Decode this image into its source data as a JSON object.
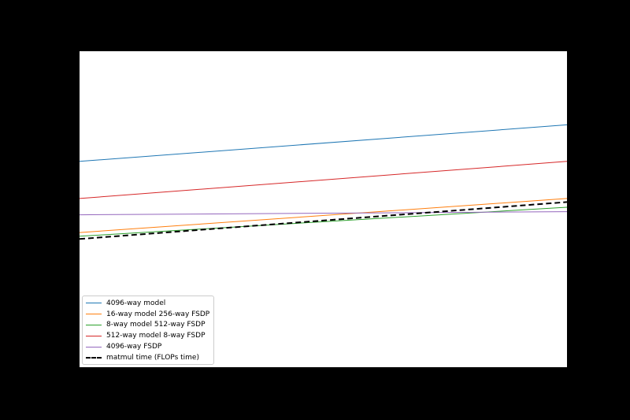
{
  "chart_data": {
    "type": "line",
    "title": "",
    "xlabel": "",
    "ylabel": "",
    "xscale": "log",
    "yscale": "log",
    "xlim": [
      1,
      100
    ],
    "ylim": [
      1,
      1000
    ],
    "x": [
      1,
      100
    ],
    "series": [
      {
        "name": "4096-way model",
        "color": "#1f77b4",
        "dash": "solid",
        "values": [
          90,
          200
        ]
      },
      {
        "name": "16-way model 256-way FSDP",
        "color": "#ff7f0e",
        "dash": "solid",
        "values": [
          19,
          40
        ]
      },
      {
        "name": "8-way model 512-way FSDP",
        "color": "#2ca02c",
        "dash": "solid",
        "values": [
          17.5,
          33
        ]
      },
      {
        "name": "512-way model 8-way FSDP",
        "color": "#d62728",
        "dash": "solid",
        "values": [
          40,
          90
        ]
      },
      {
        "name": "4096-way FSDP",
        "color": "#9467bd",
        "dash": "solid",
        "values": [
          28,
          30
        ]
      },
      {
        "name": "matmul time (FLOPs time)",
        "color": "#000000",
        "dash": "dashed",
        "values": [
          16.5,
          37
        ]
      }
    ],
    "grid": false,
    "legend_position": "bottom-left"
  }
}
